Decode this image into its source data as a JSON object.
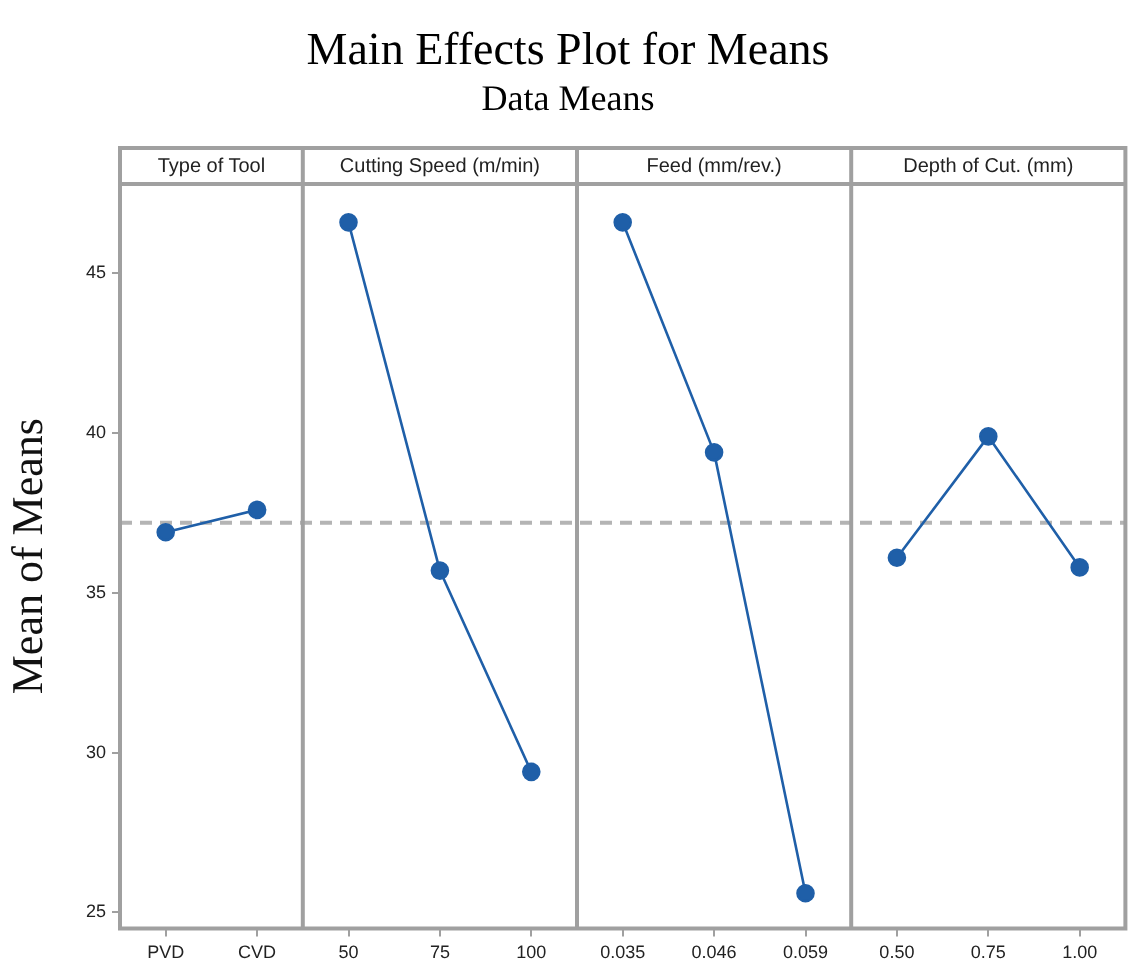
{
  "chart_data": {
    "type": "line",
    "title": "Main Effects Plot for Means",
    "subtitle": "Data Means",
    "ylabel": "Mean of Means",
    "categories": [
      "PVD",
      "CVD",
      "50",
      "75",
      "100",
      "0.035",
      "0.046",
      "0.059",
      "0.50",
      "0.75",
      "1.00"
    ],
    "series": [
      {
        "color": "#1f5fa8",
        "values": [
          36.9,
          37.6,
          null,
          null,
          null,
          null,
          null,
          null,
          null,
          null,
          null
        ]
      },
      {
        "color": "#1f5fa8",
        "values": [
          null,
          null,
          46.6,
          35.7,
          29.4,
          null,
          null,
          null,
          null,
          null,
          null
        ]
      },
      {
        "color": "#1f5fa8",
        "values": [
          null,
          null,
          null,
          null,
          null,
          46.6,
          39.4,
          25.6,
          null,
          null,
          null
        ]
      },
      {
        "color": "#1f5fa8",
        "values": [
          null,
          null,
          null,
          null,
          null,
          null,
          null,
          null,
          36.1,
          39.9,
          35.8
        ]
      }
    ],
    "annotations": [
      "Type of Tool",
      "Cutting Speed (m/min)",
      "Feed (mm/rev.)",
      "Depth of Cut. (mm)"
    ],
    "ylim": [
      24.5,
      47.8
    ],
    "yticks": [
      25,
      30,
      35,
      40,
      45
    ],
    "grid": false,
    "legend": false,
    "marker": "circle",
    "line_style": "solid",
    "ref_lines": [
      {
        "axis": "y",
        "value": 37.2,
        "color": "#b4b4b4",
        "line_style": "dashed"
      }
    ]
  }
}
